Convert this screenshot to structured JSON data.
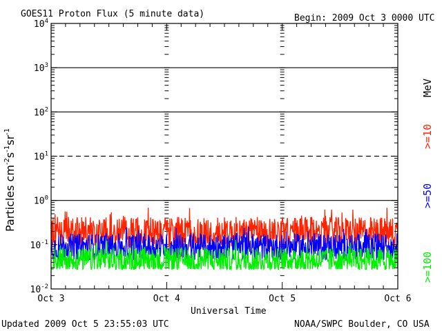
{
  "chart_data": {
    "type": "line",
    "title": "GOES11 Proton Flux (5 minute data)",
    "begin_label": "Begin: 2009 Oct 3 0000 UTC",
    "xlabel": "Universal Time",
    "ylabel_main": "Particles cm",
    "ylabel_parts": [
      {
        "text": "Particles cm",
        "sup": false
      },
      {
        "text": "-2",
        "sup": true
      },
      {
        "text": "s",
        "sup": false
      },
      {
        "text": "-1",
        "sup": true
      },
      {
        "text": "sr",
        "sup": false
      },
      {
        "text": "-1",
        "sup": true
      }
    ],
    "x_ticks": [
      "Oct 3",
      "Oct 4",
      "Oct 5",
      "Oct 6"
    ],
    "x_range_days": [
      0,
      3
    ],
    "y_scale": "log",
    "y_ticks": [
      {
        "base": "10",
        "exp": "4",
        "value": 10000
      },
      {
        "base": "10",
        "exp": "3",
        "value": 1000
      },
      {
        "base": "10",
        "exp": "2",
        "value": 100
      },
      {
        "base": "10",
        "exp": "1",
        "value": 10
      },
      {
        "base": "10",
        "exp": "0",
        "value": 1
      },
      {
        "base": "10",
        "exp": "-1",
        "value": 0.1
      },
      {
        "base": "10",
        "exp": "-2",
        "value": 0.01
      }
    ],
    "ylim": [
      0.01,
      10000
    ],
    "threshold_lines": [
      {
        "value": 1000,
        "style": "solid"
      },
      {
        "value": 100,
        "style": "solid"
      },
      {
        "value": 10,
        "style": "dashed"
      },
      {
        "value": 1,
        "style": "solid"
      }
    ],
    "series": [
      {
        "name": ">=10",
        "color": "#ff2200",
        "base": 0.19,
        "spread": 0.35,
        "spike_max": 0.72
      },
      {
        "name": ">=50",
        "color": "#0000ff",
        "base": 0.09,
        "spread": 0.3,
        "spike_max": 0.26
      },
      {
        "name": ">=100",
        "color": "#00ee00",
        "base": 0.045,
        "spread": 0.28,
        "spike_max": 0.13,
        "floor": 0.028
      }
    ],
    "legend_unit": "MeV",
    "footer_left": "Updated 2009 Oct  5 23:55:03 UTC",
    "footer_right": "NOAA/SWPC Boulder, CO USA"
  }
}
